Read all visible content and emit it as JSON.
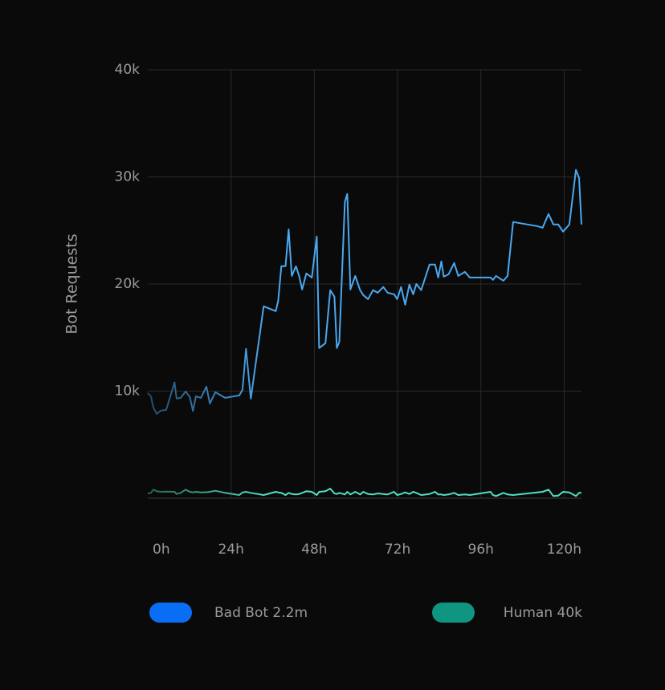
{
  "chart_data": {
    "type": "line",
    "y_label": "Bot Requests",
    "x": [
      0,
      0.9,
      1.6,
      2.6,
      3.7,
      5.3,
      7.7,
      8.3,
      9.5,
      10.9,
      12.1,
      13,
      13.9,
      15.3,
      16.9,
      17.9,
      19.5,
      22.3,
      26.4,
      27.3,
      28.3,
      29.7,
      33.4,
      36.9,
      37.6,
      38.5,
      39.7,
      40.6,
      41.5,
      42.7,
      43.6,
      44.5,
      45.7,
      47.3,
      48.7,
      49.4,
      51.2,
      52.6,
      53.8,
      54.5,
      55.2,
      56.8,
      57.5,
      58.4,
      59.8,
      61.2,
      62.1,
      63.5,
      64.9,
      66.3,
      67.9,
      69.1,
      71,
      71.9,
      73,
      74.2,
      75.4,
      76.5,
      77.4,
      78.8,
      81.2,
      82.8,
      83.7,
      84.6,
      85.3,
      86.7,
      88.3,
      89.5,
      91.4,
      92.8,
      98.8,
      99.5,
      100.4,
      102.5,
      103.7,
      105.3,
      112.2,
      113.8,
      115.5,
      116.9,
      118.3,
      119.7,
      121.5,
      123.4,
      124.3,
      125
    ],
    "series": [
      {
        "name": "Bad Bot 2.2m",
        "color": "#4aa8f0",
        "legend_color": "#0a6ef5",
        "values": [
          9820,
          9520,
          8470,
          7870,
          8170,
          8250,
          10800,
          9300,
          9370,
          9970,
          9450,
          8170,
          9520,
          9370,
          10420,
          8850,
          9900,
          9370,
          9600,
          10120,
          13940,
          9300,
          17920,
          17470,
          18440,
          21660,
          21660,
          25110,
          20760,
          21660,
          20760,
          19490,
          20990,
          20610,
          24440,
          14020,
          14470,
          19420,
          18820,
          14020,
          14620,
          27660,
          28410,
          19490,
          20760,
          19420,
          18970,
          18590,
          19420,
          19190,
          19720,
          19190,
          19040,
          18590,
          19720,
          18070,
          19940,
          19040,
          20010,
          19420,
          21810,
          21810,
          20610,
          22110,
          20690,
          20910,
          21960,
          20760,
          21140,
          20610,
          20610,
          20390,
          20760,
          20310,
          20760,
          25790,
          25410,
          25260,
          26540,
          25560,
          25560,
          24890,
          25560,
          30660,
          29910,
          25560
        ]
      },
      {
        "name": "Human 40k",
        "color": "#4fe0c0",
        "legend_color": "#0e9680",
        "values": [
          450,
          500,
          800,
          650,
          600,
          620,
          600,
          400,
          500,
          800,
          600,
          550,
          600,
          550,
          560,
          600,
          700,
          500,
          300,
          550,
          600,
          500,
          300,
          600,
          550,
          500,
          300,
          500,
          400,
          350,
          400,
          500,
          650,
          600,
          300,
          600,
          650,
          900,
          450,
          400,
          500,
          350,
          600,
          350,
          600,
          350,
          600,
          400,
          350,
          450,
          400,
          350,
          600,
          300,
          400,
          550,
          400,
          600,
          500,
          300,
          400,
          600,
          350,
          350,
          300,
          350,
          500,
          300,
          350,
          300,
          600,
          300,
          200,
          500,
          350,
          300,
          550,
          600,
          800,
          200,
          250,
          600,
          550,
          200,
          500,
          500
        ]
      }
    ],
    "xlim": [
      0,
      125
    ],
    "xticks": [
      {
        "value": 0,
        "label": "0h"
      },
      {
        "value": 24,
        "label": "24h"
      },
      {
        "value": 48,
        "label": "48h"
      },
      {
        "value": 72,
        "label": "72h"
      },
      {
        "value": 96,
        "label": "96h"
      },
      {
        "value": 120,
        "label": "120h"
      }
    ],
    "ylim": [
      0,
      40000
    ],
    "yticks": [
      {
        "value": 10000,
        "label": "10k"
      },
      {
        "value": 20000,
        "label": "20k"
      },
      {
        "value": 30000,
        "label": "30k"
      },
      {
        "value": 40000,
        "label": "40k"
      }
    ],
    "grid": true
  }
}
